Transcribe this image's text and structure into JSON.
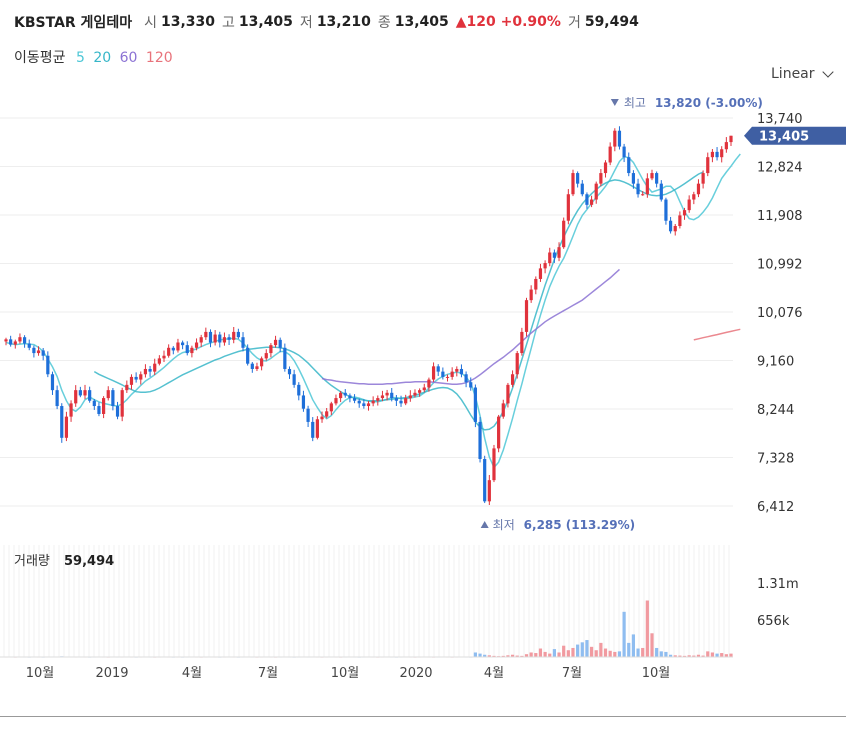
{
  "header": {
    "name": "KBSTAR 게임테마",
    "open_label": "시",
    "open": "13,330",
    "high_label": "고",
    "high": "13,405",
    "low_label": "저",
    "low": "13,210",
    "close_label": "종",
    "close": "13,405",
    "change": "▲120 +0.90%",
    "volume_label": "거",
    "volume": "59,494"
  },
  "ma_legend": {
    "title": "이동평균",
    "periods": [
      {
        "label": "5",
        "color": "#4dc7d6"
      },
      {
        "label": "20",
        "color": "#37b6c8"
      },
      {
        "label": "60",
        "color": "#8b72d4"
      },
      {
        "label": "120",
        "color": "#e8737b"
      }
    ]
  },
  "scale_selector": {
    "value": "Linear",
    "icon": "chevron-down-icon"
  },
  "chart_data": {
    "type": "candlestick",
    "up_color": "#e0323c",
    "down_color": "#1e6fd9",
    "y_ticks": [
      "13,740",
      "12,824",
      "11,908",
      "10,992",
      "10,076",
      "9,160",
      "8,244",
      "7,328",
      "6,412"
    ],
    "y_tick_values": [
      13740,
      12824,
      11908,
      10992,
      10076,
      9160,
      8244,
      7328,
      6412
    ],
    "last_price_tag": {
      "label": "13,405",
      "value": 13405,
      "color": "#3f5fa3"
    },
    "high_annotation": {
      "label": "최고",
      "value_text": "13,820 (-3.00%)",
      "value": 13820
    },
    "low_annotation": {
      "label": "최저",
      "value_text": "6,285 (113.29%)",
      "value": 6285
    },
    "x_labels": [
      "10월",
      "2019",
      "4월",
      "7월",
      "10월",
      "2020",
      "4월",
      "7월",
      "10월"
    ],
    "volume_label": "거래량",
    "volume_value": "59,494",
    "volume_ticks": [
      "1.31m",
      "656k"
    ],
    "volume_tick_values": [
      1310000,
      656000
    ],
    "closes": [
      9560,
      9460,
      9520,
      9600,
      9480,
      9400,
      9300,
      9350,
      9250,
      8900,
      8600,
      8300,
      7700,
      8100,
      8350,
      8600,
      8500,
      8600,
      8400,
      8300,
      8150,
      8450,
      8600,
      8300,
      8100,
      8600,
      8700,
      8850,
      8800,
      8900,
      9000,
      8950,
      9100,
      9200,
      9250,
      9400,
      9350,
      9500,
      9450,
      9300,
      9400,
      9500,
      9600,
      9700,
      9500,
      9650,
      9500,
      9600,
      9550,
      9700,
      9600,
      9400,
      9100,
      9000,
      9050,
      9200,
      9300,
      9450,
      9550,
      9400,
      9000,
      8900,
      8700,
      8500,
      8250,
      8000,
      7700,
      8050,
      8100,
      8200,
      8350,
      8450,
      8550,
      8500,
      8450,
      8400,
      8350,
      8300,
      8350,
      8400,
      8450,
      8500,
      8550,
      8450,
      8400,
      8350,
      8450,
      8500,
      8550,
      8600,
      8650,
      8800,
      9050,
      8950,
      8850,
      8850,
      8950,
      9000,
      8900,
      8750,
      8650,
      8000,
      7300,
      6500,
      6900,
      7500,
      8100,
      8350,
      8700,
      8900,
      9300,
      9700,
      10300,
      10500,
      10700,
      10900,
      11000,
      11200,
      11100,
      11300,
      11800,
      12300,
      12700,
      12500,
      12300,
      12100,
      12200,
      12500,
      12700,
      12900,
      13200,
      13500,
      13200,
      13000,
      12700,
      12500,
      12300,
      12300,
      12600,
      12700,
      12500,
      12200,
      11800,
      11600,
      11700,
      11900,
      12000,
      12200,
      12300,
      12500,
      12700,
      13000,
      13100,
      13000,
      13150,
      13285,
      13405
    ],
    "series": [
      {
        "name": "5",
        "color": "#4dc7d6",
        "values": [
          9500,
          9480,
          9460,
          9470,
          9480,
          9470,
          9460,
          9410,
          9330,
          9190,
          9040,
          8860,
          8600,
          8400,
          8250,
          8200,
          8280,
          8420,
          8470,
          8420,
          8380,
          8350,
          8330,
          8310,
          8300,
          8340,
          8420,
          8520,
          8600,
          8690,
          8770,
          8830,
          8890,
          8960,
          9030,
          9110,
          9190,
          9260,
          9310,
          9330,
          9350,
          9380,
          9420,
          9460,
          9490,
          9520,
          9550,
          9560,
          9570,
          9580,
          9560,
          9490,
          9390,
          9290,
          9210,
          9160,
          9150,
          9200,
          9270,
          9330,
          9330,
          9270,
          9160,
          9000,
          8820,
          8620,
          8420,
          8270,
          8140,
          8060,
          8120,
          8230,
          8330,
          8410,
          8460,
          8470,
          8450,
          8420,
          8390,
          8380,
          8380,
          8400,
          8430,
          8460,
          8460,
          8440,
          8440,
          8450,
          8470,
          8490,
          8550,
          8640,
          8740,
          8810,
          8860,
          8900,
          8920,
          8940,
          8920,
          8850,
          8730,
          8480,
          8120,
          7690,
          7340,
          7140,
          7240,
          7470,
          7760,
          8070,
          8400,
          8720,
          9060,
          9390,
          9720,
          10020,
          10300,
          10560,
          10760,
          10940,
          11090,
          11290,
          11510,
          11730,
          11900,
          12010,
          12130,
          12240,
          12340,
          12450,
          12580,
          12750,
          12920,
          13010,
          12990,
          12900,
          12740,
          12580,
          12440,
          12340,
          12370,
          12400,
          12450,
          12450,
          12360,
          12160,
          11970,
          11840,
          11820,
          11870,
          11960,
          12080,
          12230,
          12420,
          12600,
          12720,
          12830,
          12950,
          13060
        ]
      },
      {
        "name": "20",
        "color": "#37b6c8",
        "values": [
          null,
          null,
          null,
          null,
          null,
          null,
          null,
          null,
          null,
          null,
          null,
          null,
          null,
          null,
          null,
          null,
          null,
          null,
          null,
          8950,
          8900,
          8860,
          8820,
          8780,
          8740,
          8700,
          8650,
          8610,
          8570,
          8560,
          8560,
          8570,
          8600,
          8640,
          8690,
          8740,
          8790,
          8840,
          8890,
          8930,
          8970,
          9010,
          9050,
          9090,
          9130,
          9170,
          9200,
          9240,
          9270,
          9300,
          9330,
          9350,
          9370,
          9380,
          9390,
          9400,
          9410,
          9410,
          9410,
          9400,
          9380,
          9350,
          9310,
          9260,
          9190,
          9110,
          9020,
          8930,
          8840,
          8760,
          8690,
          8630,
          8570,
          8520,
          8480,
          8450,
          8430,
          8410,
          8400,
          8400,
          8400,
          8410,
          8420,
          8430,
          8440,
          8450,
          8460,
          8480,
          8500,
          8530,
          8560,
          8590,
          8620,
          8640,
          8650,
          8640,
          8600,
          8530,
          8420,
          8280,
          8130,
          8000,
          7900,
          7850,
          7860,
          7920,
          8040,
          8200,
          8400,
          8640,
          8900,
          9180,
          9460,
          9750,
          10030,
          10310,
          10580,
          10830,
          11070,
          11290,
          11490,
          11670,
          11840,
          11990,
          12120,
          12220,
          12310,
          12390,
          12460,
          12510,
          12550,
          12570,
          12560,
          12530,
          12490,
          12440,
          12390,
          12340,
          12300,
          12280,
          12270,
          12280,
          12300,
          12340,
          12390,
          12440,
          12500,
          12560,
          12620,
          12680,
          12720
        ]
      },
      {
        "name": "60",
        "color": "#8b72d4",
        "values": [
          null,
          null,
          null,
          null,
          null,
          null,
          null,
          null,
          null,
          null,
          null,
          null,
          null,
          null,
          null,
          null,
          null,
          null,
          null,
          null,
          null,
          null,
          null,
          null,
          null,
          null,
          null,
          null,
          null,
          null,
          null,
          null,
          null,
          null,
          null,
          null,
          null,
          null,
          null,
          null,
          null,
          null,
          null,
          null,
          null,
          null,
          null,
          null,
          null,
          null,
          null,
          null,
          null,
          null,
          null,
          null,
          null,
          null,
          null,
          null,
          null,
          null,
          null,
          null,
          null,
          null,
          null,
          null,
          8820,
          8800,
          8790,
          8770,
          8760,
          8750,
          8740,
          8730,
          8720,
          8720,
          8710,
          8710,
          8710,
          8710,
          8720,
          8720,
          8730,
          8740,
          8750,
          8750,
          8760,
          8760,
          8760,
          8760,
          8750,
          8740,
          8730,
          8720,
          8710,
          8710,
          8720,
          8740,
          8780,
          8830,
          8890,
          8960,
          9030,
          9100,
          9160,
          9220,
          9290,
          9360,
          9440,
          9520,
          9600,
          9680,
          9750,
          9820,
          9890,
          9950,
          10000,
          10050,
          10100,
          10150,
          10200,
          10250,
          10300,
          10370,
          10440,
          10510,
          10580,
          10650,
          10720,
          10800,
          10880
        ]
      },
      {
        "name": "120",
        "color": "#e8737b",
        "values": [
          null,
          null,
          null,
          null,
          null,
          null,
          null,
          null,
          null,
          null,
          null,
          null,
          null,
          null,
          null,
          null,
          null,
          null,
          null,
          null,
          null,
          null,
          null,
          null,
          null,
          null,
          null,
          null,
          null,
          null,
          null,
          null,
          null,
          null,
          null,
          null,
          null,
          null,
          null,
          null,
          null,
          null,
          null,
          null,
          null,
          null,
          null,
          null,
          null,
          null,
          null,
          null,
          null,
          null,
          null,
          null,
          null,
          null,
          null,
          null,
          null,
          null,
          null,
          null,
          null,
          null,
          null,
          null,
          null,
          null,
          null,
          null,
          null,
          null,
          null,
          null,
          null,
          null,
          null,
          null,
          null,
          null,
          null,
          null,
          null,
          null,
          null,
          null,
          null,
          null,
          null,
          null,
          null,
          null,
          null,
          null,
          null,
          null,
          null,
          null,
          null,
          null,
          null,
          null,
          null,
          null,
          null,
          null,
          null,
          null,
          null,
          null,
          null,
          null,
          null,
          null,
          null,
          null,
          null,
          null,
          null,
          null,
          null,
          null,
          null,
          null,
          null,
          null,
          null,
          null,
          null,
          null,
          null,
          null,
          null,
          null,
          null,
          null,
          null,
          null,
          null,
          null,
          null,
          null,
          null,
          null,
          null,
          null,
          9550,
          9570,
          9590,
          9610,
          9630,
          9650,
          9670,
          9690,
          9710,
          9730,
          9750
        ]
      }
    ],
    "volumes": [
      5000,
      6000,
      4000,
      7000,
      5000,
      4000,
      6000,
      5000,
      4000,
      8000,
      9000,
      7000,
      12000,
      8000,
      6000,
      5000,
      6000,
      5000,
      4000,
      5000,
      6000,
      5000,
      4000,
      6000,
      5000,
      5000,
      6000,
      5000,
      4000,
      5000,
      6000,
      5000,
      4000,
      5000,
      6000,
      5000,
      4000,
      5000,
      4000,
      5000,
      6000,
      5000,
      4000,
      5000,
      6000,
      5000,
      4000,
      5000,
      6000,
      5000,
      4000,
      5000,
      6000,
      5000,
      4000,
      5000,
      6000,
      5000,
      4000,
      5000,
      6000,
      5000,
      4000,
      5000,
      6000,
      5000,
      7000,
      5000,
      4000,
      5000,
      6000,
      5000,
      4000,
      5000,
      6000,
      5000,
      4000,
      5000,
      6000,
      5000,
      4000,
      5000,
      6000,
      5000,
      4000,
      5000,
      6000,
      5000,
      4000,
      5000,
      6000,
      5000,
      4000,
      5000,
      6000,
      5000,
      4000,
      5000,
      6000,
      5000,
      4000,
      80000,
      60000,
      40000,
      30000,
      20000,
      15000,
      20000,
      30000,
      40000,
      25000,
      20000,
      50000,
      80000,
      70000,
      150000,
      90000,
      60000,
      140000,
      80000,
      200000,
      120000,
      160000,
      220000,
      260000,
      300000,
      180000,
      120000,
      250000,
      150000,
      110000,
      90000,
      100000,
      800000,
      250000,
      400000,
      150000,
      160000,
      1000000,
      420000,
      160000,
      100000,
      90000,
      40000,
      30000,
      25000,
      20000,
      30000,
      25000,
      40000,
      25000,
      100000,
      80000,
      60000,
      70000,
      50000,
      60000,
      50000,
      59494
    ]
  }
}
